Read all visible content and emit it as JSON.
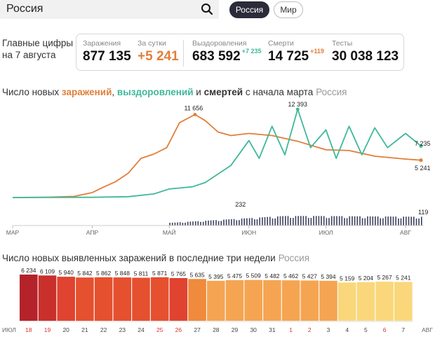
{
  "search": {
    "value": "Россия"
  },
  "tabs": [
    {
      "label": "Россия",
      "active": true
    },
    {
      "label": "Мир",
      "active": false
    }
  ],
  "main_figures": {
    "label_line1": "Главные цифры",
    "label_line2": "на 7 августа",
    "cases": {
      "label": "Заражения",
      "value": "877 135"
    },
    "daily": {
      "label": "За сутки",
      "value": "+5 241"
    },
    "recovered": {
      "label": "Выздоровления",
      "value": "683 592",
      "delta": "+7 235"
    },
    "deaths": {
      "label": "Смерти",
      "value": "14 725",
      "delta": "+119"
    },
    "tests": {
      "label": "Тесты",
      "value": "30 038 123"
    }
  },
  "trend_chart": {
    "title_part1": "Число новых ",
    "title_infections": "заражений",
    "title_comma": ", ",
    "title_recoveries": "выздоровлений",
    "title_and": " и ",
    "title_deaths": "смертей",
    "title_part2": " с начала марта",
    "title_region": "Россия",
    "colors": {
      "infections": "#e07e3a",
      "recoveries": "#3fb89b",
      "deaths": "#3a3f5c"
    },
    "month_labels": [
      "МАР",
      "АПР",
      "МАЙ",
      "ИЮН",
      "ИЮЛ",
      "АВГ"
    ],
    "annotations": {
      "peak_infections": "11 656",
      "peak_recoveries": "12 393",
      "last_recoveries": "7 235",
      "last_infections": "5 241",
      "peak_deaths": "232",
      "last_deaths": "119"
    }
  },
  "chart_data": [
    {
      "type": "line",
      "title": "Число новых заражений, выздоровлений и смертей с начала марта",
      "x_range": [
        "2020-03-01",
        "2020-08-07"
      ],
      "series": [
        {
          "name": "заражений",
          "x": [
            "2020-03-01",
            "2020-03-15",
            "2020-03-25",
            "2020-04-01",
            "2020-04-05",
            "2020-04-10",
            "2020-04-15",
            "2020-04-20",
            "2020-04-25",
            "2020-04-30",
            "2020-05-05",
            "2020-05-11",
            "2020-05-15",
            "2020-05-20",
            "2020-05-25",
            "2020-06-01",
            "2020-06-10",
            "2020-06-20",
            "2020-07-01",
            "2020-07-10",
            "2020-07-20",
            "2020-08-01",
            "2020-08-07"
          ],
          "values": [
            0,
            50,
            160,
            700,
            1400,
            2200,
            3400,
            5500,
            6100,
            7000,
            10500,
            11656,
            10800,
            9200,
            8700,
            9000,
            8700,
            7900,
            6700,
            6600,
            5800,
            5400,
            5241
          ]
        },
        {
          "name": "выздоровлений",
          "x": [
            "2020-03-01",
            "2020-04-01",
            "2020-04-15",
            "2020-04-25",
            "2020-05-01",
            "2020-05-10",
            "2020-05-15",
            "2020-05-25",
            "2020-06-01",
            "2020-06-05",
            "2020-06-10",
            "2020-06-15",
            "2020-06-20",
            "2020-06-25",
            "2020-07-01",
            "2020-07-05",
            "2020-07-10",
            "2020-07-15",
            "2020-07-20",
            "2020-07-25",
            "2020-08-01",
            "2020-08-07"
          ],
          "values": [
            0,
            30,
            120,
            500,
            1200,
            1500,
            2100,
            4500,
            8000,
            5500,
            10000,
            6000,
            12393,
            7000,
            9500,
            5500,
            10000,
            6000,
            9800,
            7000,
            9000,
            7235
          ]
        }
      ]
    },
    {
      "type": "bar",
      "title": "смертей",
      "x_range": [
        "2020-03-01",
        "2020-08-07"
      ],
      "values": [
        232,
        119
      ]
    },
    {
      "type": "bar",
      "title": "Число новых выявленных заражений в последние три недели",
      "categories": [
        "18",
        "19",
        "20",
        "21",
        "22",
        "23",
        "24",
        "25",
        "26",
        "27",
        "28",
        "29",
        "30",
        "31",
        "1",
        "2",
        "3",
        "4",
        "5",
        "6",
        "7"
      ],
      "values": [
        6234,
        6109,
        5940,
        5842,
        5862,
        5848,
        5811,
        5871,
        5765,
        5635,
        5395,
        5475,
        5509,
        5482,
        5462,
        5427,
        5394,
        5159,
        5204,
        5267,
        5241
      ],
      "value_labels": [
        "6 234",
        "6 109",
        "5 940",
        "5 842",
        "5 862",
        "5 848",
        "5 811",
        "5 871",
        "5 765",
        "5 635",
        "5 395",
        "5 475",
        "5 509",
        "5 482",
        "5 462",
        "5 427",
        "5 394",
        "5 159",
        "5 204",
        "5 267",
        "5 241"
      ],
      "red_categories": [
        "18",
        "19",
        "25",
        "26",
        "1",
        "2",
        "6"
      ],
      "colors": [
        "#b4232a",
        "#c9302c",
        "#e0432f",
        "#e5502f",
        "#e5502f",
        "#e5502f",
        "#e5502f",
        "#e5502f",
        "#e0432f",
        "#f08a3c",
        "#f5a552",
        "#f5a552",
        "#f5a552",
        "#f5a552",
        "#f5a552",
        "#f5a552",
        "#f5a552",
        "#f9d77a",
        "#f9d77a",
        "#f9d77a",
        "#f9d77a"
      ],
      "month_left": "ИЮЛ",
      "month_right": "АВГ",
      "title_region": "Россия"
    }
  ]
}
